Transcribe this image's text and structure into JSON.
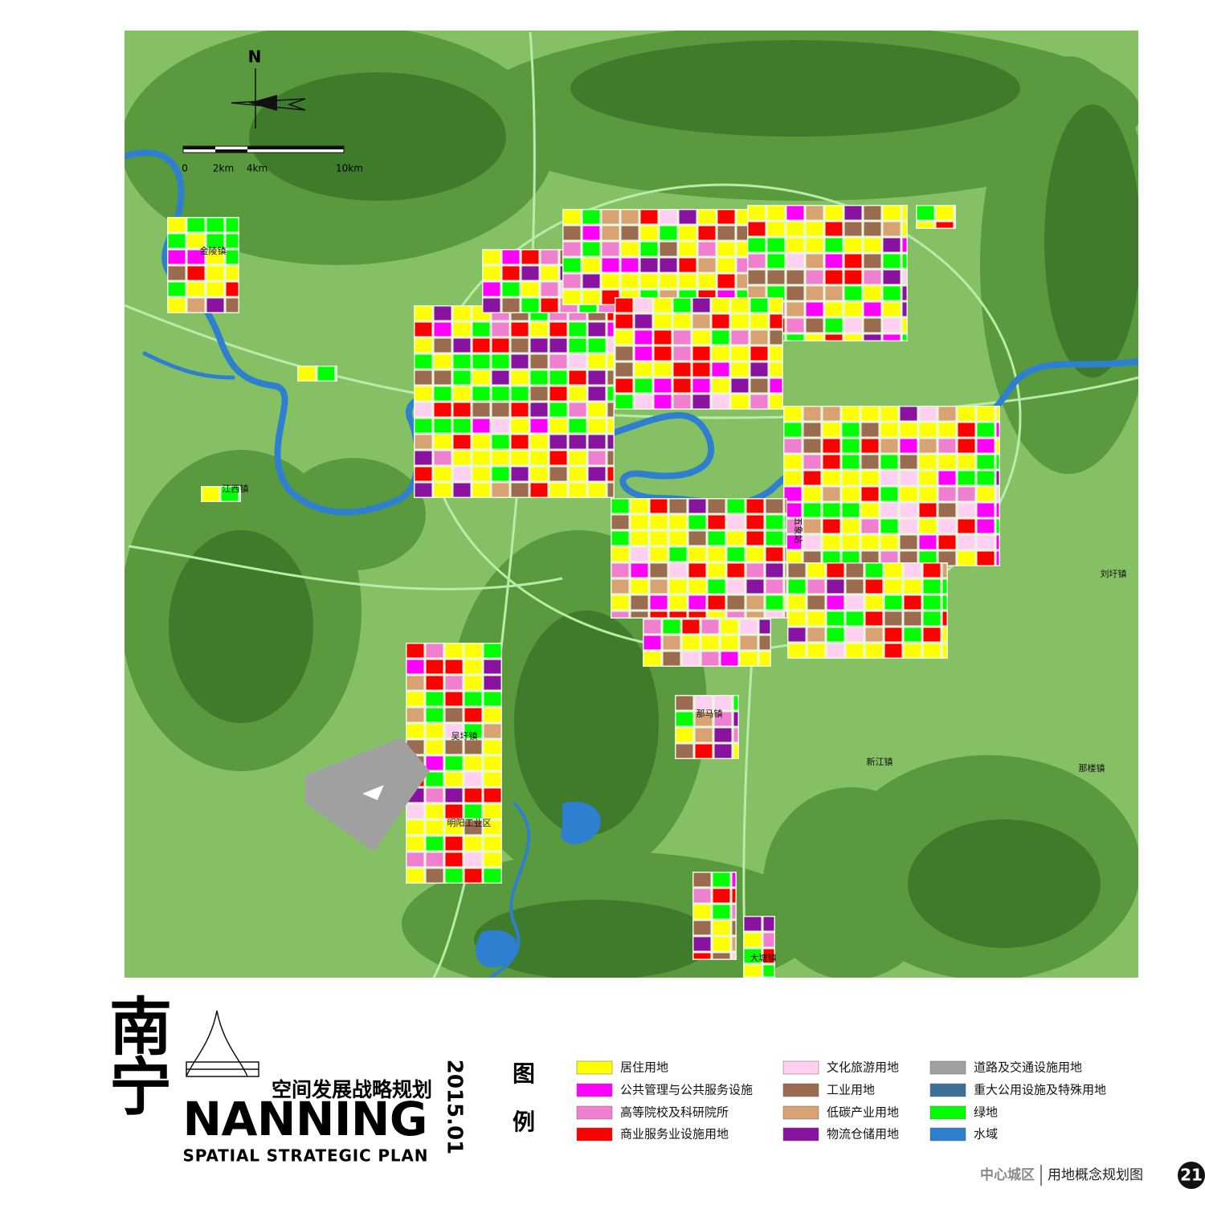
{
  "map": {
    "north": "N",
    "scale_labels": [
      "0",
      "2km",
      "4km",
      "10km"
    ],
    "places": [
      "金陵镇",
      "江西镇",
      "吴圩镇",
      "那马镇",
      "明阳工业区",
      "新江镇",
      "那楼镇",
      "刘圩镇",
      "大塘镇",
      "五象站"
    ]
  },
  "header": {
    "title_cn": [
      "南",
      "宁"
    ],
    "subtitle_cn": "空间发展战略规划",
    "date": "2015.01",
    "title_en": "NANNING",
    "subtitle_en": "SPATIAL STRATEGIC PLAN"
  },
  "legend": {
    "title": [
      "图",
      "例"
    ],
    "items": [
      {
        "label": "居住用地",
        "color": "#ffff00"
      },
      {
        "label": "公共管理与公共服务设施",
        "color": "#ff00ff"
      },
      {
        "label": "高等院校及科研院所",
        "color": "#f07fd0"
      },
      {
        "label": "商业服务业设施用地",
        "color": "#ff0000"
      },
      {
        "label": "文化旅游用地",
        "color": "#ffd0f0"
      },
      {
        "label": "工业用地",
        "color": "#9b6b50"
      },
      {
        "label": "低碳产业用地",
        "color": "#d9a273"
      },
      {
        "label": "物流仓储用地",
        "color": "#8a12a0"
      },
      {
        "label": "道路及交通设施用地",
        "color": "#a0a0a0"
      },
      {
        "label": "重大公用设施及特殊用地",
        "color": "#3f6f95"
      },
      {
        "label": "绿地",
        "color": "#00ff00"
      },
      {
        "label": "水域",
        "color": "#2f7fd0"
      }
    ]
  },
  "footer": {
    "section": "中心城区",
    "title": "用地概念规划图",
    "page": "21"
  }
}
